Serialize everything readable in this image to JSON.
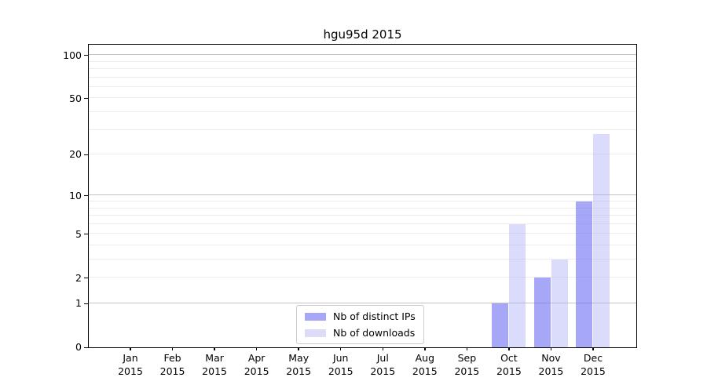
{
  "title": "hgu95d 2015",
  "chart_data": {
    "type": "bar",
    "title": "hgu95d 2015",
    "categories": [
      "Jan",
      "Feb",
      "Mar",
      "Apr",
      "May",
      "Jun",
      "Jul",
      "Aug",
      "Sep",
      "Oct",
      "Nov",
      "Dec"
    ],
    "year_label": "2015",
    "series": [
      {
        "name": "Nb of distinct IPs",
        "color": "#a7a7f7",
        "fill": "rgba(108,108,243,0.6)",
        "values": [
          0,
          0,
          0,
          0,
          0,
          0,
          0,
          0,
          0,
          1,
          2,
          9
        ]
      },
      {
        "name": "Nb of downloads",
        "color": "#dcdcf8",
        "fill": "rgba(170,170,245,0.42)",
        "values": [
          0,
          0,
          0,
          0,
          0,
          0,
          0,
          0,
          0,
          6,
          3,
          28
        ]
      }
    ],
    "y_scale": "log10(1+x)",
    "ylim": [
      0,
      118
    ],
    "y_ticks": [
      0,
      1,
      2,
      5,
      10,
      20,
      50,
      100
    ],
    "y_gridlines_major": [
      1,
      10,
      100
    ],
    "y_gridlines_minor": [
      2,
      3,
      4,
      5,
      6,
      7,
      8,
      9,
      20,
      30,
      40,
      50,
      60,
      70,
      80,
      90
    ],
    "grid": true,
    "legend_position": "lower center"
  },
  "colors": {
    "background": "#ffffff",
    "axis": "#000000",
    "text": "#000000",
    "grid_major": "#c3c3c3",
    "grid_minor": "#ededed",
    "legend_border": "#cccccc"
  }
}
